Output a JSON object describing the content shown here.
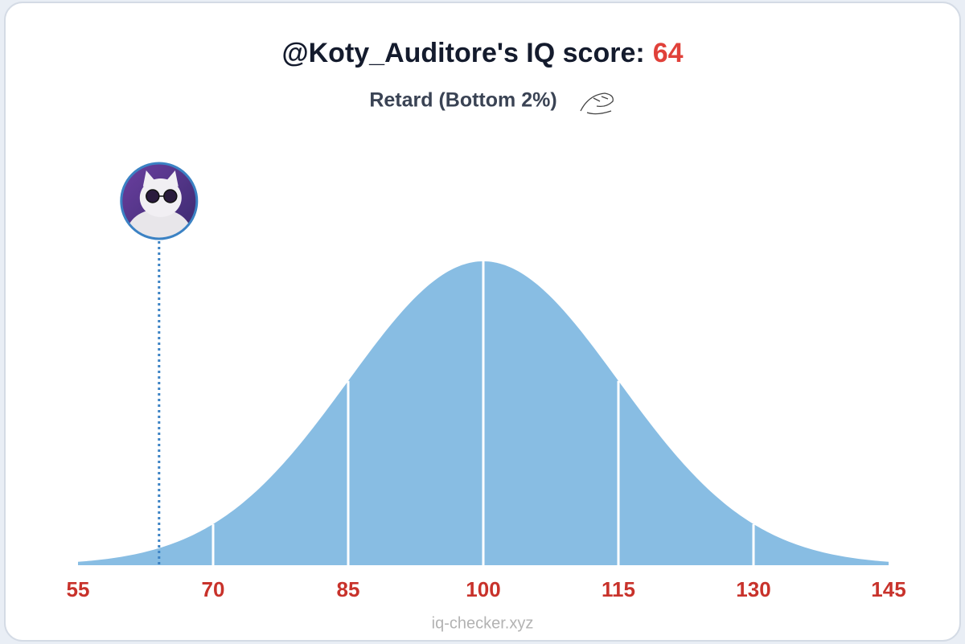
{
  "chart_data": {
    "type": "normal-curve",
    "title": "@Koty_Auditore's IQ score:",
    "score": 64,
    "subtitle": "Retard (Bottom 2%)",
    "footer": "iq-checker.xyz",
    "mean": 100,
    "sd": 15,
    "xlim": [
      55,
      145
    ],
    "xticks": [
      55,
      70,
      85,
      100,
      115,
      130,
      145
    ],
    "color": "#88bde3",
    "score_color": "#e0413a",
    "marker_color": "#3b82c4"
  }
}
